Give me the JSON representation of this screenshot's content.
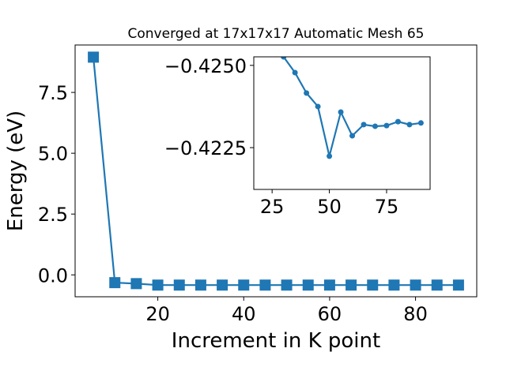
{
  "chart_data": [
    {
      "type": "line",
      "marker": "square",
      "title": "Converged at 17x17x17 Automatic Mesh 65",
      "x_label": "Increment in K point",
      "y_label": "Energy (eV)",
      "x": [
        5,
        10,
        15,
        20,
        25,
        30,
        35,
        40,
        45,
        50,
        55,
        60,
        65,
        70,
        75,
        80,
        85,
        90
      ],
      "series": [
        {
          "color": "#1f77b4",
          "values": [
            8.95,
            -0.32,
            -0.36,
            -0.42,
            -0.42,
            -0.42,
            -0.42,
            -0.42,
            -0.42,
            -0.42,
            -0.42,
            -0.42,
            -0.42,
            -0.42,
            -0.42,
            -0.42,
            -0.42,
            -0.42
          ]
        }
      ],
      "xlim": [
        0.75,
        94.25
      ],
      "ylim": [
        -0.9,
        9.45
      ],
      "xticks": [
        20,
        40,
        60,
        80
      ],
      "yticks": [
        {
          "value": 0,
          "label": "0.0"
        },
        2.5,
        {
          "value": 5,
          "label": "5.0"
        },
        7.5
      ]
    },
    {
      "type": "line",
      "marker": "circle",
      "y_inverted": true,
      "x": [
        30,
        35,
        40,
        45,
        50,
        55,
        60,
        65,
        70,
        75,
        80,
        85,
        90
      ],
      "series": [
        {
          "color": "#1f77b4",
          "values": [
            -0.42526,
            -0.42478,
            -0.42416,
            -0.42375,
            -0.42224,
            -0.42358,
            -0.42286,
            -0.4232,
            -0.42315,
            -0.42317,
            -0.42329,
            -0.4232,
            -0.42325
          ]
        }
      ],
      "xlim": [
        17,
        94
      ],
      "ylim": [
        -0.42526,
        -0.42123
      ],
      "xticks": [
        25,
        50,
        75
      ],
      "yticks": [
        {
          "value": -0.425,
          "label": "−0.4250"
        },
        {
          "value": -0.4225,
          "label": "−0.4225"
        }
      ]
    }
  ]
}
